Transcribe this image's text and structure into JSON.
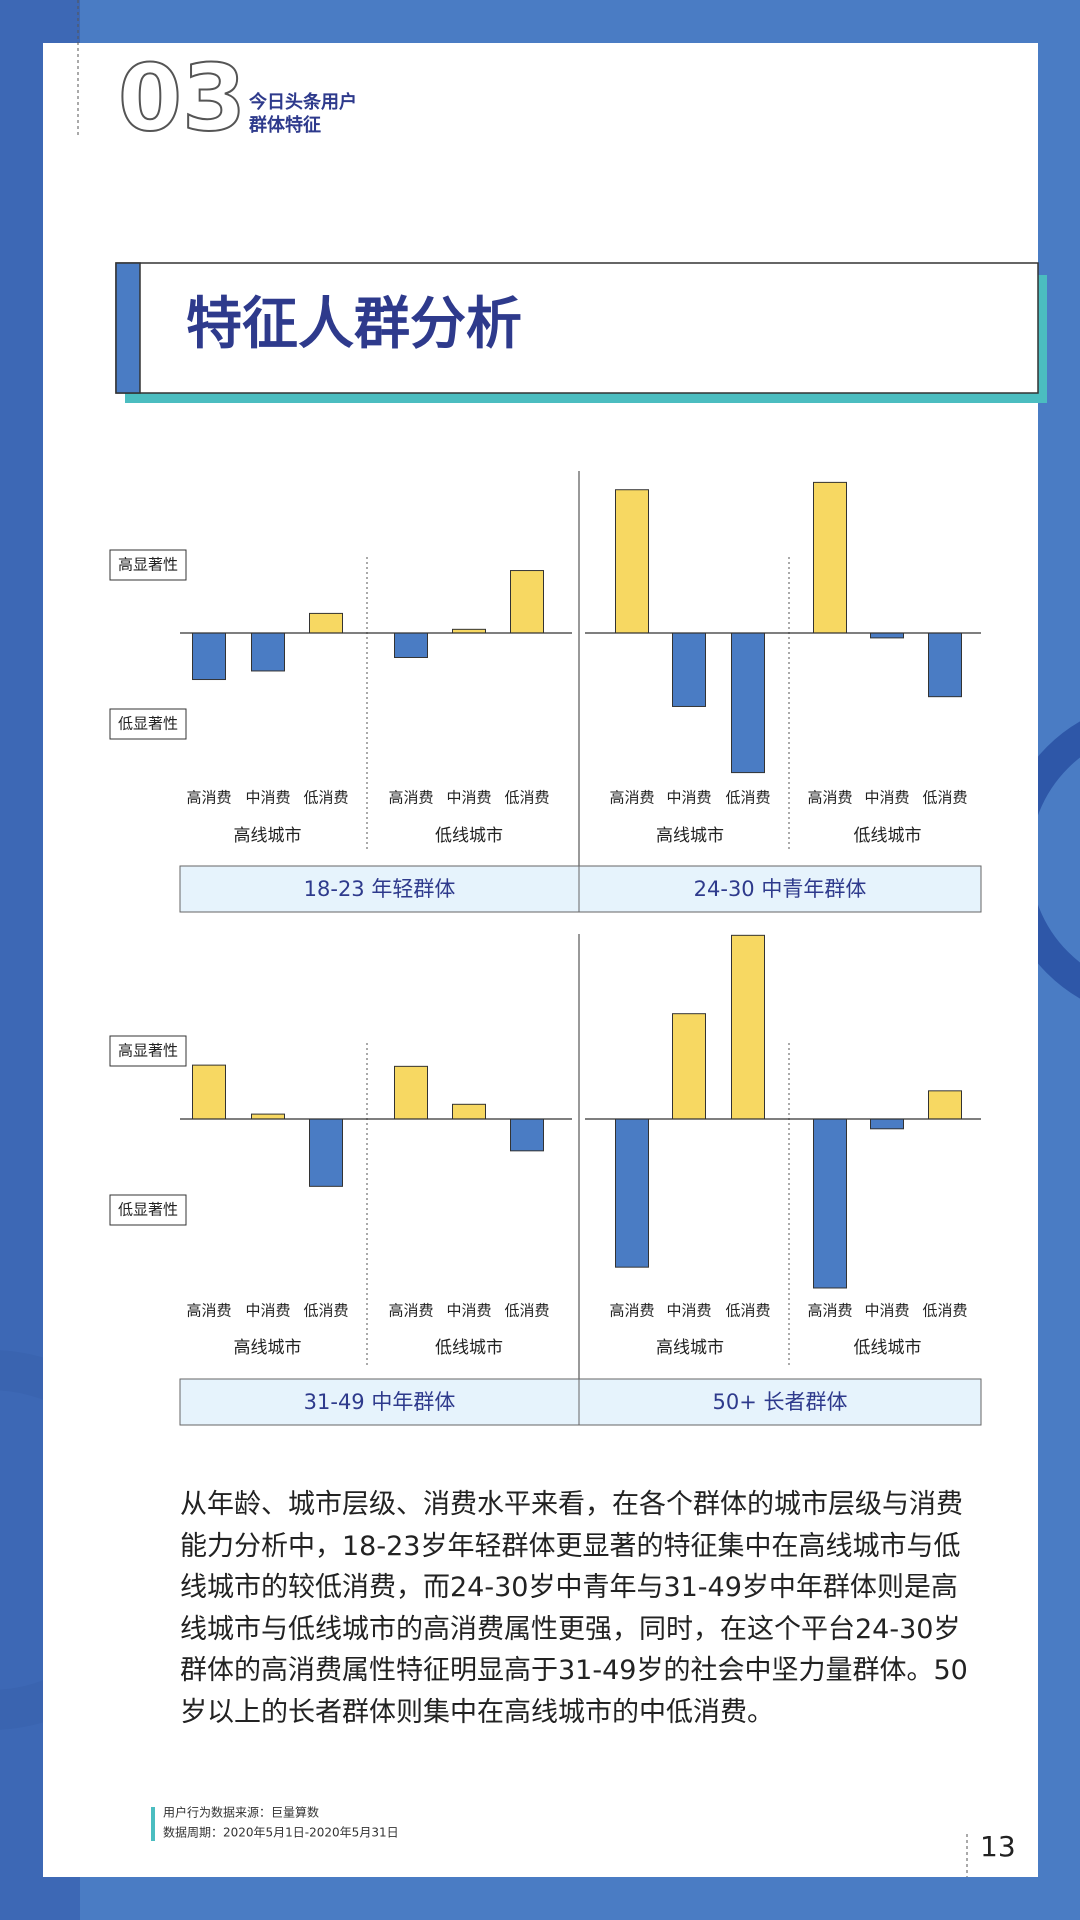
{
  "header": {
    "number": "03",
    "title_lines": [
      "今日头条用户",
      "群体特征"
    ]
  },
  "section_title": "特征人群分析",
  "chart_data": [
    {
      "type": "bar",
      "title": "18-23 年轻群体",
      "y_labels": [
        "高显著性",
        "低显著性"
      ],
      "categories": [
        "高消费",
        "中消费",
        "低消费",
        "高消费",
        "中消费",
        "低消费"
      ],
      "groups": [
        "高线城市",
        "低线城市"
      ],
      "values": [
        -38,
        -31,
        16,
        -20,
        3,
        51
      ],
      "positive_color": "#f7d862",
      "negative_color": "#4a7cc4",
      "ylim": [
        -140,
        150
      ]
    },
    {
      "type": "bar",
      "title": "24-30 中青年群体",
      "categories": [
        "高消费",
        "中消费",
        "低消费",
        "高消费",
        "中消费",
        "低消费"
      ],
      "groups": [
        "高线城市",
        "低线城市"
      ],
      "values": [
        117,
        -60,
        -114,
        123,
        -4,
        -52
      ],
      "positive_color": "#f7d862",
      "negative_color": "#4a7cc4",
      "ylim": [
        -140,
        150
      ]
    },
    {
      "type": "bar",
      "title": "31-49 中年群体",
      "y_labels": [
        "高显著性",
        "低显著性"
      ],
      "categories": [
        "高消费",
        "中消费",
        "低消费",
        "高消费",
        "中消费",
        "低消费"
      ],
      "groups": [
        "高线城市",
        "低线城市"
      ],
      "values": [
        44,
        4,
        -55,
        43,
        12,
        -26
      ],
      "positive_color": "#f7d862",
      "negative_color": "#4a7cc4",
      "ylim": [
        -140,
        150
      ]
    },
    {
      "type": "bar",
      "title": "50+ 长者群体",
      "categories": [
        "高消费",
        "中消费",
        "低消费",
        "高消费",
        "中消费",
        "低消费"
      ],
      "groups": [
        "高线城市",
        "低线城市"
      ],
      "values": [
        -121,
        86,
        150,
        -138,
        -8,
        23
      ],
      "positive_color": "#f7d862",
      "negative_color": "#4a7cc4",
      "ylim": [
        -140,
        150
      ]
    }
  ],
  "paragraph": "从年龄、城市层级、消费水平来看，在各个群体的城市层级与消费能力分析中，18-23岁年轻群体更显著的特征集中在高线城市与低线城市的较低消费，而24-30岁中青年与31-49岁中年群体则是高线城市与低线城市的高消费属性更强，同时，在这个平台24-30岁群体的高消费属性特征明显高于31-49岁的社会中坚力量群体。50岁以上的长者群体则集中在高线城市的中低消费。",
  "footnote": [
    "用户行为数据来源：巨量算数",
    "数据周期：2020年5月1日-2020年5月31日"
  ],
  "page_number": "13"
}
